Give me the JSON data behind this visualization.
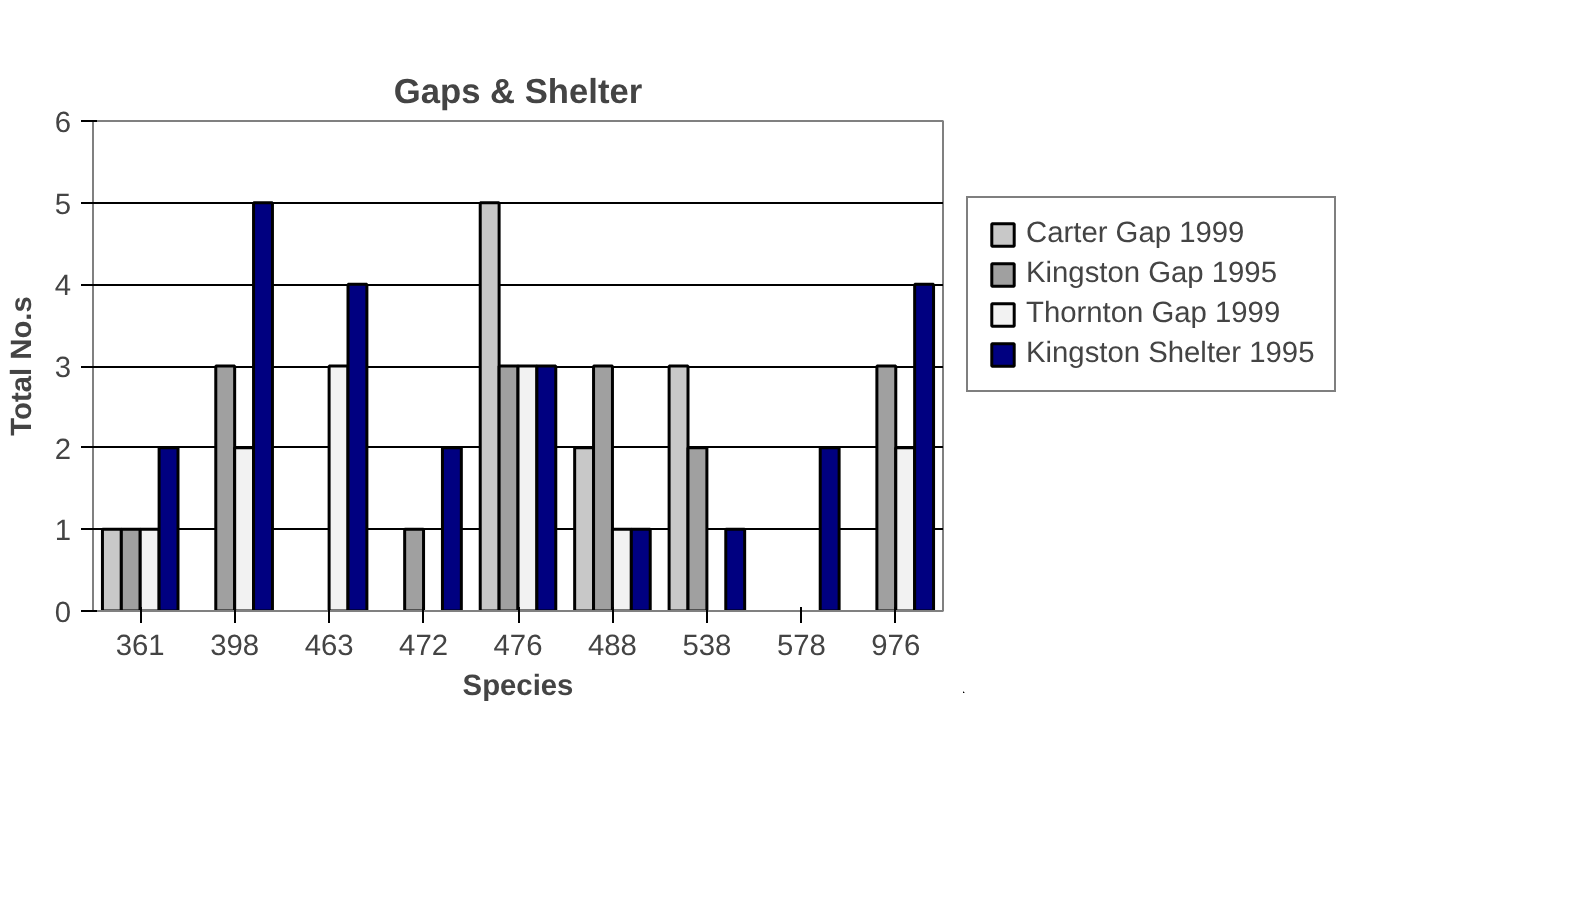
{
  "chart_data": {
    "type": "bar",
    "title": "Gaps & Shelter",
    "xlabel": "Species",
    "ylabel": "Total No.s",
    "categories": [
      "361",
      "398",
      "463",
      "472",
      "476",
      "488",
      "538",
      "578",
      "976"
    ],
    "series": [
      {
        "name": "Carter Gap 1999",
        "color": "#c8c8c8",
        "values": [
          1,
          0,
          0,
          0,
          5,
          2,
          3,
          0,
          0
        ]
      },
      {
        "name": "Kingston Gap 1995",
        "color": "#a0a0a0",
        "values": [
          1,
          3,
          0,
          1,
          3,
          3,
          2,
          0,
          3
        ]
      },
      {
        "name": "Thornton Gap 1999",
        "color": "#f2f2f2",
        "values": [
          1,
          2,
          3,
          0,
          3,
          1,
          0,
          0,
          2
        ]
      },
      {
        "name": "Kingston Shelter 1995",
        "color": "#000080",
        "values": [
          2,
          5,
          4,
          2,
          3,
          1,
          1,
          2,
          4
        ]
      }
    ],
    "ylim": [
      0,
      6
    ],
    "yticks": [
      0,
      1,
      2,
      3,
      4,
      5,
      6
    ],
    "grid": "y",
    "legend": "right"
  }
}
